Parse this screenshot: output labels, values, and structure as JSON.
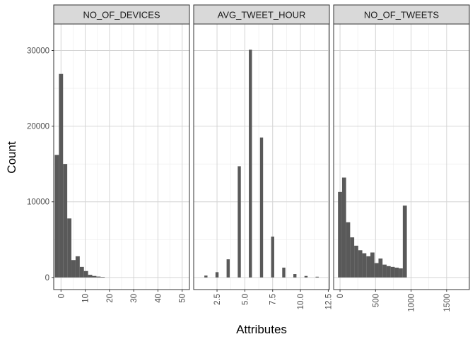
{
  "chart_data": {
    "type": "bar",
    "subtype": "faceted-histogram",
    "xlabel": "Attributes",
    "ylabel": "Count",
    "ylim": [
      -1600,
      33500
    ],
    "y_ticks": [
      0,
      10000,
      20000,
      30000
    ],
    "y_tick_labels": [
      "0",
      "10000",
      "20000",
      "30000"
    ],
    "grid": true,
    "bar_color": "#595959",
    "strip_fill": "#d9d9d9",
    "panel_border": "#333333",
    "grid_color": "#ebebeb",
    "panels": [
      {
        "title": "NO_OF_DEVICES",
        "xlim": [
          -3,
          53
        ],
        "x_ticks": [
          0,
          10,
          20,
          30,
          40,
          50
        ],
        "x_tick_labels": [
          "0",
          "10",
          "20",
          "30",
          "40",
          "50"
        ],
        "bin_width": 1.72,
        "bins": [
          {
            "x": -1.72,
            "count": 16200
          },
          {
            "x": 0,
            "count": 26900
          },
          {
            "x": 1.72,
            "count": 15000
          },
          {
            "x": 3.44,
            "count": 7800
          },
          {
            "x": 5.16,
            "count": 2300
          },
          {
            "x": 6.88,
            "count": 2800
          },
          {
            "x": 8.6,
            "count": 1400
          },
          {
            "x": 10.32,
            "count": 850
          },
          {
            "x": 12.04,
            "count": 350
          },
          {
            "x": 13.76,
            "count": 200
          },
          {
            "x": 15.48,
            "count": 120
          },
          {
            "x": 17.2,
            "count": 70
          }
        ]
      },
      {
        "title": "AVG_TWEET_HOUR",
        "xlim": [
          0.4,
          12.6
        ],
        "x_ticks": [
          2.5,
          5.0,
          7.5,
          10.0,
          12.5
        ],
        "x_tick_labels": [
          "2.5",
          "5.0",
          "7.5",
          "10.0",
          "12.5"
        ],
        "bin_width": 0.28,
        "bins": [
          {
            "x": 1.5,
            "count": 250
          },
          {
            "x": 2.5,
            "count": 700
          },
          {
            "x": 3.5,
            "count": 2400
          },
          {
            "x": 4.5,
            "count": 14700
          },
          {
            "x": 5.5,
            "count": 30100
          },
          {
            "x": 6.5,
            "count": 18500
          },
          {
            "x": 7.5,
            "count": 5400
          },
          {
            "x": 8.5,
            "count": 1300
          },
          {
            "x": 9.5,
            "count": 450
          },
          {
            "x": 10.5,
            "count": 200
          },
          {
            "x": 11.5,
            "count": 100
          }
        ]
      },
      {
        "title": "NO_OF_TWEETS",
        "xlim": [
          -90,
          1820
        ],
        "x_ticks": [
          0,
          500,
          1000,
          1500
        ],
        "x_tick_labels": [
          "0",
          "500",
          "1000",
          "1500"
        ],
        "bin_width": 57,
        "bins": [
          {
            "x": 0,
            "count": 11300
          },
          {
            "x": 57,
            "count": 13200
          },
          {
            "x": 114,
            "count": 7300
          },
          {
            "x": 171,
            "count": 5300
          },
          {
            "x": 228,
            "count": 4200
          },
          {
            "x": 285,
            "count": 3600
          },
          {
            "x": 342,
            "count": 3200
          },
          {
            "x": 399,
            "count": 2800
          },
          {
            "x": 456,
            "count": 3300
          },
          {
            "x": 513,
            "count": 1900
          },
          {
            "x": 570,
            "count": 2500
          },
          {
            "x": 627,
            "count": 1700
          },
          {
            "x": 684,
            "count": 1500
          },
          {
            "x": 741,
            "count": 1400
          },
          {
            "x": 798,
            "count": 1300
          },
          {
            "x": 855,
            "count": 1200
          },
          {
            "x": 912,
            "count": 9500
          }
        ]
      }
    ]
  }
}
